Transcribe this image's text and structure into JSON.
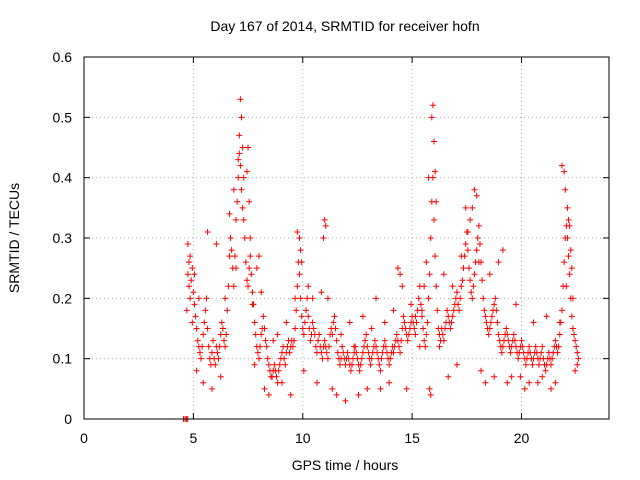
{
  "chart_data": {
    "type": "scatter",
    "title": "Day 167 of 2014, SRMTID for receiver hofn",
    "xlabel": "GPS time / hours",
    "ylabel": "SRMTID / TECUs",
    "xlim": [
      0,
      24
    ],
    "ylim": [
      0,
      0.6
    ],
    "xticks": [
      0,
      5,
      10,
      15,
      20
    ],
    "xtick_labels": [
      "0",
      "5",
      "10",
      "15",
      "20"
    ],
    "yticks": [
      0,
      0.1,
      0.2,
      0.3,
      0.4,
      0.5,
      0.6
    ],
    "ytick_labels": [
      "0",
      "0.1",
      "0.2",
      "0.3",
      "0.4",
      "0.5",
      "0.6"
    ],
    "grid": true,
    "marker": "+",
    "color": "#ff0000",
    "series": [
      {
        "name": "SRMTID",
        "x": [
          4.55,
          4.62,
          4.68,
          4.74,
          4.7,
          4.75,
          4.8,
          4.85,
          4.9,
          4.95,
          5.0,
          5.05,
          5.1,
          5.15,
          5.2,
          5.25,
          5.3,
          5.35,
          5.4,
          5.45,
          5.5,
          5.55,
          5.6,
          5.65,
          5.7,
          5.75,
          5.8,
          5.85,
          5.9,
          5.95,
          6.0,
          6.05,
          6.1,
          6.15,
          6.2,
          6.25,
          6.3,
          6.35,
          6.4,
          6.45,
          6.5,
          6.55,
          6.6,
          6.65,
          6.7,
          6.75,
          6.8,
          6.85,
          6.9,
          6.95,
          7.0,
          7.05,
          7.1,
          7.15,
          7.2,
          7.25,
          7.3,
          7.35,
          7.4,
          7.45,
          7.5,
          7.55,
          7.6,
          7.65,
          7.7,
          7.75,
          7.8,
          7.85,
          7.9,
          7.95,
          8.0,
          8.05,
          8.1,
          8.15,
          8.2,
          8.25,
          8.3,
          8.35,
          8.4,
          8.45,
          8.5,
          8.55,
          8.6,
          8.65,
          8.7,
          8.75,
          8.8,
          8.85,
          8.9,
          8.95,
          9.0,
          9.05,
          9.1,
          9.15,
          9.2,
          9.25,
          9.3,
          9.35,
          9.4,
          9.45,
          9.5,
          9.55,
          9.6,
          9.65,
          9.7,
          9.75,
          9.8,
          9.85,
          9.9,
          9.95,
          10.0,
          10.05,
          10.1,
          10.15,
          10.2,
          10.25,
          10.3,
          10.35,
          10.4,
          10.45,
          10.5,
          10.55,
          10.6,
          10.65,
          10.7,
          10.75,
          10.8,
          10.85,
          10.9,
          10.95,
          11.0,
          11.05,
          11.1,
          11.15,
          11.2,
          11.25,
          11.3,
          11.35,
          11.4,
          11.45,
          11.5,
          11.55,
          11.6,
          11.65,
          11.7,
          11.75,
          11.8,
          11.85,
          11.9,
          11.95,
          12.0,
          12.05,
          12.1,
          12.15,
          12.2,
          12.25,
          12.3,
          12.35,
          12.4,
          12.45,
          12.5,
          12.55,
          12.6,
          12.65,
          12.7,
          12.75,
          12.8,
          12.85,
          12.9,
          12.95,
          13.0,
          13.05,
          13.1,
          13.15,
          13.2,
          13.25,
          13.3,
          13.35,
          13.4,
          13.45,
          13.5,
          13.55,
          13.6,
          13.65,
          13.7,
          13.75,
          13.8,
          13.85,
          13.9,
          13.95,
          14.0,
          14.05,
          14.1,
          14.15,
          14.2,
          14.25,
          14.3,
          14.35,
          14.4,
          14.45,
          14.5,
          14.55,
          14.6,
          14.65,
          14.7,
          14.75,
          14.8,
          14.85,
          14.9,
          14.95,
          15.0,
          15.05,
          15.1,
          15.15,
          15.2,
          15.25,
          15.3,
          15.35,
          15.4,
          15.45,
          15.5,
          15.55,
          15.6,
          15.65,
          15.7,
          15.75,
          15.8,
          15.85,
          15.9,
          15.95,
          16.0,
          16.05,
          16.1,
          16.15,
          16.2,
          16.25,
          16.3,
          16.35,
          16.4,
          16.45,
          16.5,
          16.55,
          16.6,
          16.65,
          16.7,
          16.75,
          16.8,
          16.85,
          16.9,
          16.95,
          17.0,
          17.05,
          17.1,
          17.15,
          17.2,
          17.25,
          17.3,
          17.35,
          17.4,
          17.45,
          17.5,
          17.55,
          17.6,
          17.65,
          17.7,
          17.75,
          17.8,
          17.85,
          17.9,
          17.95,
          18.0,
          18.05,
          18.1,
          18.15,
          18.2,
          18.25,
          18.3,
          18.35,
          18.4,
          18.45,
          18.5,
          18.55,
          18.6,
          18.65,
          18.7,
          18.75,
          18.8,
          18.85,
          18.9,
          18.95,
          19.0,
          19.05,
          19.1,
          19.15,
          19.2,
          19.25,
          19.3,
          19.35,
          19.4,
          19.45,
          19.5,
          19.55,
          19.6,
          19.65,
          19.7,
          19.75,
          19.8,
          19.85,
          19.9,
          19.95,
          20.0,
          20.05,
          20.1,
          20.15,
          20.2,
          20.25,
          20.3,
          20.35,
          20.4,
          20.45,
          20.5,
          20.55,
          20.6,
          20.65,
          20.7,
          20.75,
          20.8,
          20.85,
          20.9,
          20.95,
          21.0,
          21.05,
          21.1,
          21.15,
          21.2,
          21.25,
          21.3,
          21.35,
          21.4,
          21.45,
          21.5,
          21.55,
          21.6,
          21.65,
          21.7,
          21.75,
          21.8,
          21.85,
          21.9,
          21.95,
          22.0,
          22.05,
          22.1,
          22.15,
          22.2,
          22.25,
          22.3,
          22.35,
          22.4,
          22.45,
          22.5,
          22.55,
          22.6,
          4.75,
          4.8,
          4.85,
          4.95,
          5.05,
          5.15,
          5.25,
          5.45,
          5.65,
          5.85,
          6.05,
          6.25,
          6.45,
          6.65,
          6.85,
          6.95,
          7.05,
          7.1,
          7.15,
          7.2,
          7.25,
          7.3,
          7.45,
          7.5,
          7.55,
          7.6,
          7.7,
          7.8,
          7.9,
          8.0,
          8.1,
          8.25,
          8.45,
          8.65,
          8.85,
          9.05,
          9.25,
          9.45,
          9.65,
          9.75,
          9.85,
          9.9,
          9.95,
          10.05,
          10.25,
          10.45,
          10.65,
          10.85,
          10.95,
          11.0,
          11.05,
          11.15,
          11.35,
          11.55,
          11.75,
          11.95,
          12.15,
          12.35,
          12.55,
          12.75,
          12.95,
          13.15,
          13.35,
          13.55,
          13.75,
          13.95,
          14.15,
          14.35,
          14.45,
          14.55,
          14.75,
          14.95,
          15.15,
          15.35,
          15.45,
          15.55,
          15.65,
          15.75,
          15.8,
          15.85,
          15.9,
          15.95,
          16.0,
          16.05,
          16.1,
          16.25,
          16.45,
          16.65,
          16.85,
          17.05,
          17.25,
          17.45,
          17.55,
          17.65,
          17.75,
          17.85,
          17.95,
          18.05,
          18.15,
          18.35,
          18.55,
          18.75,
          18.95,
          19.15,
          19.35,
          19.55,
          19.75,
          19.95,
          20.15,
          20.35,
          20.55,
          20.75,
          20.95,
          21.15,
          21.35,
          21.55,
          21.75,
          21.85,
          21.95,
          22.0,
          22.05,
          22.1,
          22.15,
          22.2,
          22.25,
          22.3,
          22.35,
          22.45,
          22.55
        ],
        "y": [
          0.0,
          0.0,
          0.0,
          0.0,
          0.18,
          0.24,
          0.22,
          0.2,
          0.23,
          0.25,
          0.21,
          0.19,
          0.17,
          0.15,
          0.13,
          0.12,
          0.11,
          0.1,
          0.12,
          0.14,
          0.16,
          0.18,
          0.2,
          0.15,
          0.12,
          0.1,
          0.09,
          0.11,
          0.13,
          0.1,
          0.09,
          0.12,
          0.11,
          0.1,
          0.12,
          0.14,
          0.16,
          0.15,
          0.13,
          0.12,
          0.14,
          0.18,
          0.22,
          0.27,
          0.3,
          0.28,
          0.25,
          0.22,
          0.27,
          0.33,
          0.36,
          0.4,
          0.44,
          0.42,
          0.38,
          0.35,
          0.33,
          0.3,
          0.26,
          0.23,
          0.22,
          0.25,
          0.27,
          0.24,
          0.21,
          0.19,
          0.16,
          0.14,
          0.12,
          0.11,
          0.1,
          0.12,
          0.14,
          0.15,
          0.17,
          0.15,
          0.13,
          0.12,
          0.1,
          0.09,
          0.08,
          0.07,
          0.07,
          0.08,
          0.09,
          0.08,
          0.07,
          0.06,
          0.08,
          0.09,
          0.1,
          0.11,
          0.12,
          0.1,
          0.09,
          0.11,
          0.12,
          0.13,
          0.11,
          0.12,
          0.13,
          0.12,
          0.13,
          0.15,
          0.18,
          0.22,
          0.26,
          0.24,
          0.2,
          0.17,
          0.15,
          0.14,
          0.16,
          0.18,
          0.2,
          0.17,
          0.15,
          0.13,
          0.14,
          0.16,
          0.15,
          0.14,
          0.12,
          0.11,
          0.13,
          0.14,
          0.12,
          0.11,
          0.1,
          0.12,
          0.13,
          0.12,
          0.11,
          0.1,
          0.12,
          0.14,
          0.15,
          0.14,
          0.16,
          0.17,
          0.15,
          0.13,
          0.11,
          0.1,
          0.09,
          0.1,
          0.12,
          0.11,
          0.1,
          0.09,
          0.1,
          0.11,
          0.1,
          0.09,
          0.08,
          0.09,
          0.1,
          0.11,
          0.12,
          0.11,
          0.1,
          0.09,
          0.08,
          0.09,
          0.1,
          0.11,
          0.12,
          0.13,
          0.14,
          0.12,
          0.11,
          0.1,
          0.09,
          0.1,
          0.11,
          0.12,
          0.13,
          0.12,
          0.11,
          0.1,
          0.09,
          0.08,
          0.1,
          0.11,
          0.12,
          0.13,
          0.12,
          0.11,
          0.1,
          0.09,
          0.1,
          0.11,
          0.12,
          0.11,
          0.12,
          0.13,
          0.14,
          0.13,
          0.12,
          0.11,
          0.13,
          0.15,
          0.17,
          0.16,
          0.15,
          0.14,
          0.13,
          0.14,
          0.15,
          0.16,
          0.17,
          0.16,
          0.15,
          0.14,
          0.16,
          0.18,
          0.2,
          0.22,
          0.19,
          0.17,
          0.15,
          0.13,
          0.12,
          0.14,
          0.16,
          0.2,
          0.24,
          0.3,
          0.36,
          0.4,
          0.33,
          0.27,
          0.22,
          0.18,
          0.15,
          0.14,
          0.13,
          0.15,
          0.14,
          0.13,
          0.15,
          0.16,
          0.18,
          0.17,
          0.16,
          0.15,
          0.16,
          0.17,
          0.18,
          0.19,
          0.2,
          0.21,
          0.19,
          0.18,
          0.2,
          0.22,
          0.23,
          0.25,
          0.27,
          0.29,
          0.31,
          0.28,
          0.25,
          0.23,
          0.21,
          0.2,
          0.22,
          0.24,
          0.26,
          0.28,
          0.3,
          0.32,
          0.29,
          0.26,
          0.23,
          0.2,
          0.18,
          0.17,
          0.16,
          0.15,
          0.14,
          0.15,
          0.16,
          0.17,
          0.18,
          0.19,
          0.2,
          0.18,
          0.16,
          0.14,
          0.13,
          0.12,
          0.11,
          0.12,
          0.13,
          0.14,
          0.15,
          0.14,
          0.13,
          0.12,
          0.11,
          0.12,
          0.13,
          0.14,
          0.13,
          0.12,
          0.11,
          0.1,
          0.11,
          0.12,
          0.13,
          0.12,
          0.11,
          0.1,
          0.09,
          0.1,
          0.11,
          0.12,
          0.11,
          0.1,
          0.09,
          0.1,
          0.11,
          0.12,
          0.11,
          0.1,
          0.09,
          0.1,
          0.11,
          0.12,
          0.1,
          0.09,
          0.08,
          0.09,
          0.1,
          0.11,
          0.1,
          0.09,
          0.1,
          0.11,
          0.12,
          0.13,
          0.12,
          0.11,
          0.12,
          0.14,
          0.16,
          0.18,
          0.22,
          0.26,
          0.3,
          0.32,
          0.3,
          0.27,
          0.24,
          0.2,
          0.17,
          0.15,
          0.14,
          0.13,
          0.12,
          0.11,
          0.1,
          0.29,
          0.26,
          0.27,
          0.16,
          0.24,
          0.08,
          0.2,
          0.06,
          0.31,
          0.05,
          0.29,
          0.07,
          0.2,
          0.34,
          0.38,
          0.25,
          0.43,
          0.47,
          0.53,
          0.5,
          0.45,
          0.4,
          0.41,
          0.45,
          0.36,
          0.3,
          0.19,
          0.09,
          0.25,
          0.27,
          0.21,
          0.05,
          0.04,
          0.13,
          0.14,
          0.06,
          0.16,
          0.04,
          0.2,
          0.31,
          0.3,
          0.28,
          0.26,
          0.08,
          0.22,
          0.2,
          0.06,
          0.21,
          0.3,
          0.33,
          0.32,
          0.2,
          0.05,
          0.04,
          0.14,
          0.03,
          0.16,
          0.12,
          0.04,
          0.17,
          0.05,
          0.15,
          0.2,
          0.05,
          0.16,
          0.06,
          0.18,
          0.25,
          0.24,
          0.22,
          0.05,
          0.19,
          0.17,
          0.12,
          0.18,
          0.22,
          0.26,
          0.4,
          0.05,
          0.04,
          0.5,
          0.52,
          0.46,
          0.41,
          0.36,
          0.12,
          0.24,
          0.07,
          0.22,
          0.09,
          0.27,
          0.35,
          0.31,
          0.33,
          0.35,
          0.38,
          0.37,
          0.26,
          0.08,
          0.06,
          0.24,
          0.07,
          0.26,
          0.28,
          0.06,
          0.07,
          0.19,
          0.07,
          0.05,
          0.06,
          0.16,
          0.06,
          0.07,
          0.17,
          0.05,
          0.06,
          0.16,
          0.42,
          0.41,
          0.38,
          0.22,
          0.35,
          0.33,
          0.32,
          0.28,
          0.25,
          0.2,
          0.08,
          0.09
        ]
      }
    ]
  }
}
